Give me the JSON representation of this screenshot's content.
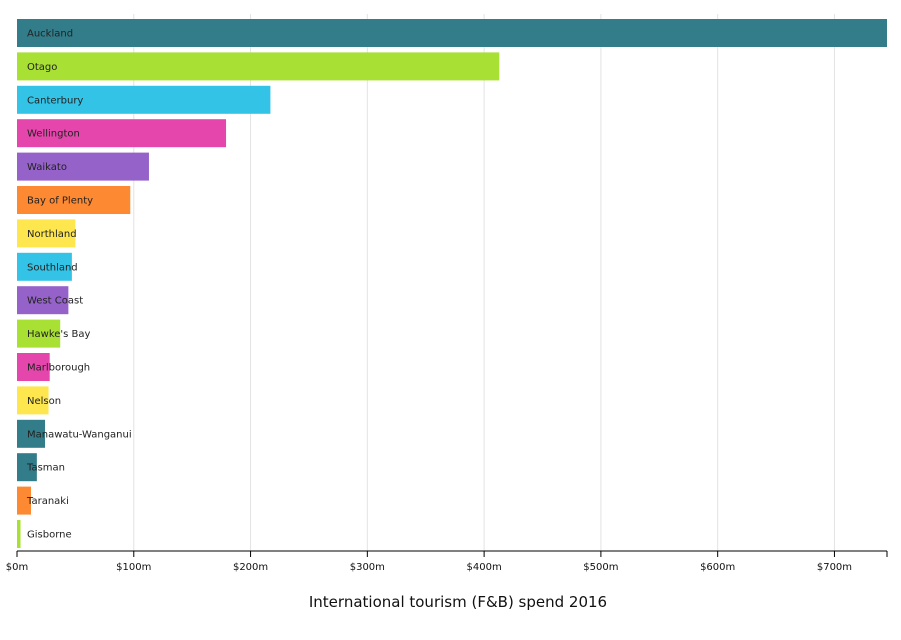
{
  "chart_data": {
    "type": "bar",
    "orientation": "horizontal",
    "xlabel": "International tourism (F&B) spend 2016",
    "ylabel": "",
    "xlim": [
      0,
      745
    ],
    "x_ticks": [
      {
        "value": 0,
        "label": "$0m"
      },
      {
        "value": 100,
        "label": "$100m"
      },
      {
        "value": 200,
        "label": "$200m"
      },
      {
        "value": 300,
        "label": "$300m"
      },
      {
        "value": 400,
        "label": "$400m"
      },
      {
        "value": 500,
        "label": "$500m"
      },
      {
        "value": 600,
        "label": "$600m"
      },
      {
        "value": 700,
        "label": "$700m"
      }
    ],
    "grid": true,
    "categories": [
      "Auckland",
      "Otago",
      "Canterbury",
      "Wellington",
      "Waikato",
      "Bay of Plenty",
      "Northland",
      "Southland",
      "West Coast",
      "Hawke's Bay",
      "Marlborough",
      "Nelson",
      "Manawatu-Wanganui",
      "Tasman",
      "Taranaki",
      "Gisborne"
    ],
    "values": [
      745,
      413,
      217,
      179,
      113,
      97,
      50,
      47,
      44,
      37,
      28,
      27,
      24,
      17,
      12,
      3
    ],
    "colors": [
      "#327d89",
      "#a8e033",
      "#33c3e6",
      "#e546ac",
      "#9562c9",
      "#fd8932",
      "#fde64e",
      "#33c3e6",
      "#9562c9",
      "#a8e033",
      "#e546ac",
      "#fde64e",
      "#327d89",
      "#327d89",
      "#fd8932",
      "#a8e033"
    ]
  }
}
